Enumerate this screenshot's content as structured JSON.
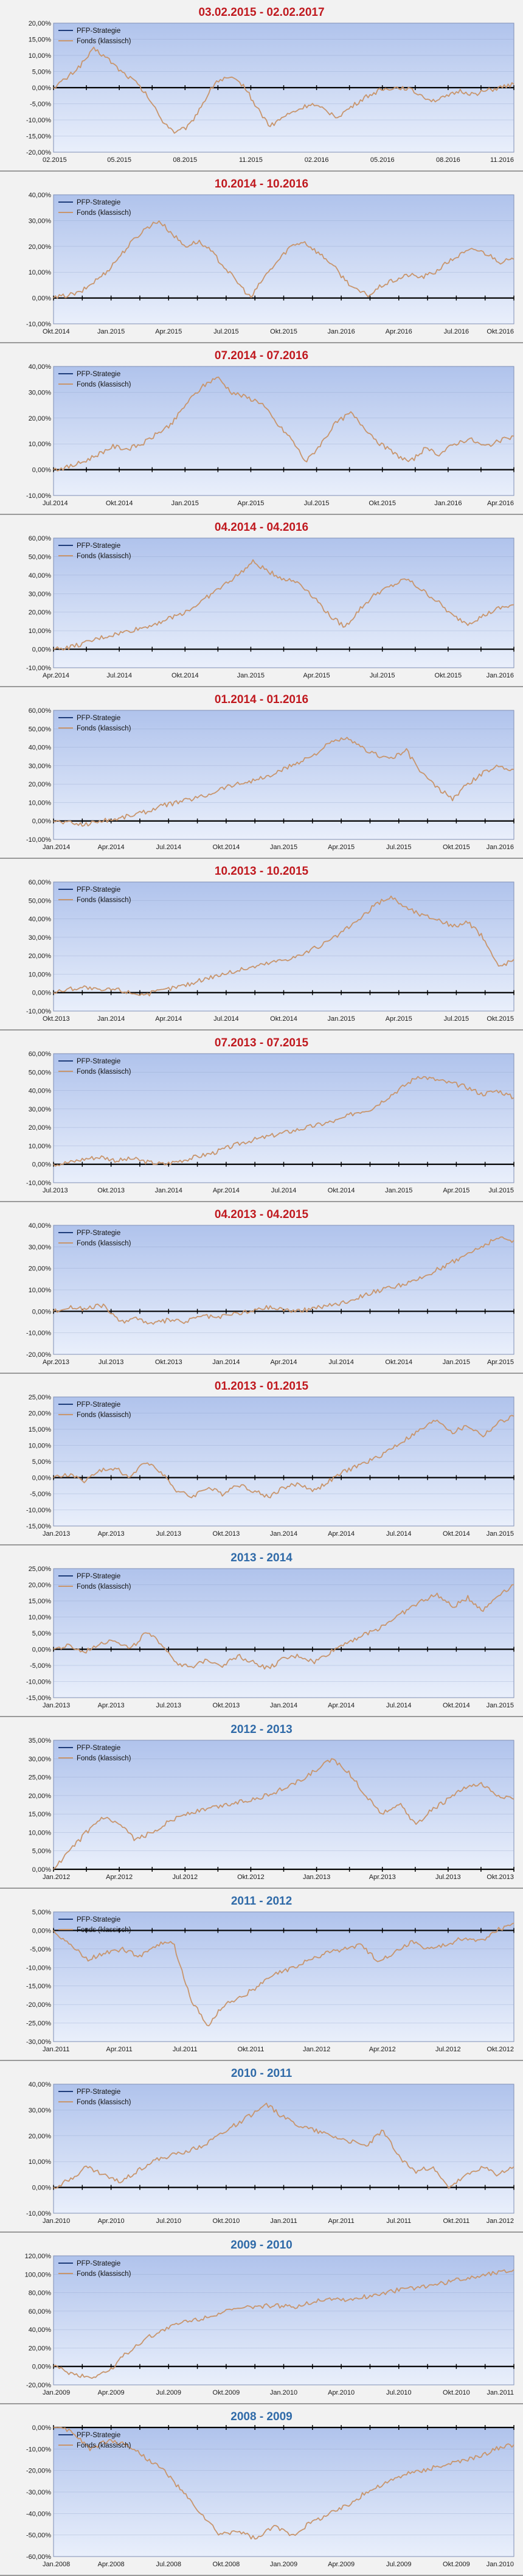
{
  "colors": {
    "panel_bg": "#f2f2f2",
    "plot_top": "#b0c3ec",
    "plot_bottom": "#e9effb",
    "title_red": "#c0191f",
    "title_blue": "#2f6aa8",
    "strategy_line": "#1f3d7a",
    "fund_line": "#c8956c",
    "zero_line": "#000000",
    "grid": "#8a9cc5"
  },
  "legend": {
    "strategy": "PFP-Strategie",
    "fund": "Fonds (klassisch)"
  },
  "chart_data": [
    {
      "type": "line",
      "title": "03.02.2015 - 02.02.2017",
      "title_color": "red",
      "yticks": [
        "20,00%",
        "15,00%",
        "10,00%",
        "5,00%",
        "0,00%",
        "-5,00%",
        "-10,00%",
        "-15,00%",
        "-20,00%"
      ],
      "ylim": [
        -20,
        20
      ],
      "xticks": [
        "02.2015",
        "05.2015",
        "08.2015",
        "11.2015",
        "02.2016",
        "05.2016",
        "08.2016",
        "11.2016"
      ],
      "series": [
        {
          "name": "PFP-Strategie",
          "values": [
            0,
            0
          ]
        },
        {
          "name": "Fonds (klassisch)",
          "values": [
            0,
            3,
            7,
            12,
            9,
            5,
            2,
            -3,
            -10,
            -14,
            -12,
            -5,
            2,
            3,
            1,
            -6,
            -12,
            -9,
            -7,
            -5,
            -7,
            -9,
            -6,
            -3,
            -1,
            0,
            0,
            -2,
            -4,
            -3,
            -1,
            -2,
            -1,
            0,
            1
          ]
        }
      ]
    },
    {
      "type": "line",
      "title": "10.2014 - 10.2016",
      "title_color": "red",
      "yticks": [
        "40,00%",
        "30,00%",
        "20,00%",
        "10,00%",
        "0,00%",
        "-10,00%"
      ],
      "ylim": [
        -10,
        40
      ],
      "xticks": [
        "Okt.2014",
        "Jan.2015",
        "Apr.2015",
        "Jul.2015",
        "Okt.2015",
        "Jan.2016",
        "Apr.2016",
        "Jul.2016",
        "Okt.2016"
      ],
      "series": [
        {
          "name": "PFP-Strategie",
          "values": [
            0,
            0
          ]
        },
        {
          "name": "Fonds (klassisch)",
          "values": [
            0,
            1,
            2,
            6,
            10,
            16,
            22,
            27,
            30,
            25,
            20,
            22,
            18,
            12,
            6,
            0,
            8,
            14,
            20,
            22,
            18,
            14,
            8,
            3,
            1,
            5,
            7,
            9,
            8,
            10,
            14,
            17,
            19,
            17,
            14,
            15
          ]
        }
      ]
    },
    {
      "type": "line",
      "title": "07.2014 - 07.2016",
      "title_color": "red",
      "yticks": [
        "40,00%",
        "30,00%",
        "20,00%",
        "10,00%",
        "0,00%",
        "-10,00%"
      ],
      "ylim": [
        -10,
        40
      ],
      "xticks": [
        "Jul.2014",
        "Okt.2014",
        "Jan.2015",
        "Apr.2015",
        "Jul.2015",
        "Okt.2015",
        "Jan.2016",
        "Apr.2016"
      ],
      "series": [
        {
          "name": "PFP-Strategie",
          "values": [
            0,
            0
          ]
        },
        {
          "name": "Fonds (klassisch)",
          "values": [
            0,
            1,
            3,
            6,
            9,
            8,
            10,
            14,
            18,
            26,
            32,
            36,
            30,
            28,
            26,
            18,
            12,
            3,
            10,
            18,
            22,
            16,
            10,
            6,
            3,
            8,
            6,
            10,
            12,
            9,
            11,
            13
          ]
        }
      ]
    },
    {
      "type": "line",
      "title": "04.2014 - 04.2016",
      "title_color": "red",
      "yticks": [
        "60,00%",
        "50,00%",
        "40,00%",
        "30,00%",
        "20,00%",
        "10,00%",
        "0,00%",
        "-10,00%"
      ],
      "ylim": [
        -10,
        60
      ],
      "xticks": [
        "Apr.2014",
        "Jul.2014",
        "Okt.2014",
        "Jan.2015",
        "Apr.2015",
        "Jul.2015",
        "Okt.2015",
        "Jan.2016"
      ],
      "series": [
        {
          "name": "PFP-Strategie",
          "values": [
            0,
            0
          ]
        },
        {
          "name": "Fonds (klassisch)",
          "values": [
            0,
            1,
            3,
            6,
            8,
            10,
            12,
            15,
            18,
            22,
            28,
            34,
            40,
            47,
            42,
            38,
            36,
            28,
            18,
            12,
            22,
            30,
            34,
            38,
            32,
            26,
            18,
            14,
            18,
            22,
            24
          ]
        }
      ]
    },
    {
      "type": "line",
      "title": "01.2014 - 01.2016",
      "title_color": "red",
      "yticks": [
        "60,00%",
        "50,00%",
        "40,00%",
        "30,00%",
        "20,00%",
        "10,00%",
        "0,00%",
        "-10,00%"
      ],
      "ylim": [
        -10,
        60
      ],
      "xticks": [
        "Jan.2014",
        "Apr.2014",
        "Jul.2014",
        "Okt.2014",
        "Jan.2015",
        "Apr.2015",
        "Jul.2015",
        "Okt.2015",
        "Jan.2016"
      ],
      "series": [
        {
          "name": "PFP-Strategie",
          "values": [
            0,
            0
          ]
        },
        {
          "name": "Fonds (klassisch)",
          "values": [
            0,
            -1,
            -2,
            0,
            1,
            3,
            5,
            8,
            10,
            12,
            14,
            18,
            20,
            22,
            24,
            28,
            32,
            36,
            42,
            45,
            40,
            36,
            34,
            38,
            26,
            18,
            12,
            20,
            26,
            30,
            28
          ]
        }
      ]
    },
    {
      "type": "line",
      "title": "10.2013 - 10.2015",
      "title_color": "red",
      "yticks": [
        "60,00%",
        "50,00%",
        "40,00%",
        "30,00%",
        "20,00%",
        "10,00%",
        "0,00%",
        "-10,00%"
      ],
      "ylim": [
        -10,
        60
      ],
      "xticks": [
        "Okt.2013",
        "Jan.2014",
        "Apr.2014",
        "Jul.2014",
        "Okt.2014",
        "Jan.2015",
        "Apr.2015",
        "Jul.2015",
        "Okt.2015"
      ],
      "series": [
        {
          "name": "PFP-Strategie",
          "values": [
            0,
            0
          ]
        },
        {
          "name": "Fonds (klassisch)",
          "values": [
            0,
            2,
            3,
            1,
            2,
            0,
            -1,
            1,
            3,
            5,
            8,
            10,
            12,
            14,
            16,
            18,
            20,
            24,
            28,
            34,
            40,
            48,
            52,
            46,
            42,
            40,
            36,
            38,
            30,
            14,
            18
          ]
        }
      ]
    },
    {
      "type": "line",
      "title": "07.2013 - 07.2015",
      "title_color": "red",
      "yticks": [
        "60,00%",
        "50,00%",
        "40,00%",
        "30,00%",
        "20,00%",
        "10,00%",
        "0,00%",
        "-10,00%"
      ],
      "ylim": [
        -10,
        60
      ],
      "xticks": [
        "Jul.2013",
        "Okt.2013",
        "Jan.2014",
        "Apr.2014",
        "Jul.2014",
        "Okt.2014",
        "Jan.2015",
        "Apr.2015",
        "Jul.2015"
      ],
      "series": [
        {
          "name": "PFP-Strategie",
          "values": [
            0,
            0
          ]
        },
        {
          "name": "Fonds (klassisch)",
          "values": [
            0,
            1,
            3,
            4,
            2,
            3,
            1,
            0,
            2,
            4,
            6,
            9,
            12,
            14,
            16,
            18,
            20,
            22,
            24,
            28,
            30,
            36,
            42,
            48,
            46,
            44,
            42,
            38,
            40,
            36
          ]
        }
      ]
    },
    {
      "type": "line",
      "title": "04.2013 - 04.2015",
      "title_color": "red",
      "yticks": [
        "40,00%",
        "30,00%",
        "20,00%",
        "10,00%",
        "0,00%",
        "-10,00%",
        "-20,00%"
      ],
      "ylim": [
        -20,
        40
      ],
      "xticks": [
        "Apr.2013",
        "Jul.2013",
        "Okt.2013",
        "Jan.2014",
        "Apr.2014",
        "Jul.2014",
        "Okt.2014",
        "Jan.2015",
        "Apr.2015"
      ],
      "series": [
        {
          "name": "PFP-Strategie",
          "values": [
            0,
            0
          ]
        },
        {
          "name": "Fonds (klassisch)",
          "values": [
            0,
            2,
            1,
            3,
            -5,
            -3,
            -6,
            -4,
            -5,
            -2,
            -3,
            -1,
            0,
            2,
            1,
            0,
            2,
            3,
            5,
            8,
            10,
            12,
            14,
            18,
            22,
            26,
            30,
            34,
            33
          ]
        }
      ]
    },
    {
      "type": "line",
      "title": "01.2013 - 01.2015",
      "title_color": "red",
      "yticks": [
        "25,00%",
        "20,00%",
        "15,00%",
        "10,00%",
        "5,00%",
        "0,00%",
        "-5,00%",
        "-10,00%",
        "-15,00%"
      ],
      "ylim": [
        -15,
        25
      ],
      "xticks": [
        "Jan.2013",
        "Apr.2013",
        "Jul.2013",
        "Okt.2013",
        "Jan.2014",
        "Apr.2014",
        "Jul.2014",
        "Okt.2014",
        "Jan.2015"
      ],
      "series": [
        {
          "name": "PFP-Strategie",
          "values": [
            0,
            0
          ]
        },
        {
          "name": "Fonds (klassisch)",
          "values": [
            0,
            1,
            -1,
            2,
            3,
            0,
            5,
            2,
            -4,
            -6,
            -3,
            -5,
            -2,
            -4,
            -6,
            -3,
            -2,
            -4,
            -1,
            2,
            4,
            6,
            9,
            12,
            15,
            18,
            14,
            16,
            13,
            17,
            19
          ]
        }
      ]
    },
    {
      "type": "line",
      "title": "2013 - 2014",
      "title_color": "blue",
      "yticks": [
        "25,00%",
        "20,00%",
        "15,00%",
        "10,00%",
        "5,00%",
        "0,00%",
        "-5,00%",
        "-10,00%",
        "-15,00%"
      ],
      "ylim": [
        -15,
        25
      ],
      "xticks": [
        "Jan.2013",
        "Apr.2013",
        "Jul.2013",
        "Okt.2013",
        "Jan.2014",
        "Apr.2014",
        "Jul.2014",
        "Okt.2014",
        "Jan.2015"
      ],
      "series": [
        {
          "name": "PFP-Strategie",
          "values": [
            0,
            0
          ]
        },
        {
          "name": "Fonds (klassisch)",
          "values": [
            0,
            1,
            -1,
            2,
            3,
            0,
            5,
            2,
            -4,
            -6,
            -3,
            -5,
            -2,
            -4,
            -6,
            -3,
            -2,
            -4,
            -1,
            2,
            4,
            6,
            9,
            12,
            15,
            17,
            13,
            16,
            12,
            17,
            20
          ]
        }
      ]
    },
    {
      "type": "line",
      "title": "2012 - 2013",
      "title_color": "blue",
      "yticks": [
        "35,00%",
        "30,00%",
        "25,00%",
        "20,00%",
        "15,00%",
        "10,00%",
        "5,00%",
        "0,00%"
      ],
      "ylim": [
        0,
        35
      ],
      "xticks": [
        "Jan.2012",
        "Apr.2012",
        "Jul.2012",
        "Okt.2012",
        "Jan.2013",
        "Apr.2013",
        "Jul.2013",
        "Okt.2013"
      ],
      "series": [
        {
          "name": "PFP-Strategie",
          "values": [
            0,
            0
          ]
        },
        {
          "name": "Fonds (klassisch)",
          "values": [
            0,
            5,
            10,
            14,
            12,
            8,
            10,
            13,
            15,
            16,
            17,
            18,
            19,
            20,
            22,
            24,
            27,
            30,
            26,
            20,
            15,
            18,
            12,
            16,
            19,
            22,
            23,
            20,
            19
          ]
        }
      ]
    },
    {
      "type": "line",
      "title": "2011 - 2012",
      "title_color": "blue",
      "yticks": [
        "5,00%",
        "0,00%",
        "-5,00%",
        "-10,00%",
        "-15,00%",
        "-20,00%",
        "-25,00%",
        "-30,00%"
      ],
      "ylim": [
        -30,
        5
      ],
      "xticks": [
        "Jan.2011",
        "Apr.2011",
        "Jul.2011",
        "Okt.2011",
        "Jan.2012",
        "Apr.2012",
        "Jul.2012",
        "Okt.2012"
      ],
      "series": [
        {
          "name": "PFP-Strategie",
          "values": [
            0,
            0
          ]
        },
        {
          "name": "Fonds (klassisch)",
          "values": [
            0,
            -4,
            -8,
            -6,
            -5,
            -7,
            -4,
            -3,
            -18,
            -26,
            -20,
            -18,
            -15,
            -12,
            -10,
            -8,
            -6,
            -5,
            -4,
            -8,
            -6,
            -3,
            -5,
            -4,
            -2,
            -3,
            0,
            2
          ]
        }
      ]
    },
    {
      "type": "line",
      "title": "2010 - 2011",
      "title_color": "blue",
      "yticks": [
        "40,00%",
        "30,00%",
        "20,00%",
        "10,00%",
        "0,00%",
        "-10,00%"
      ],
      "ylim": [
        -10,
        40
      ],
      "xticks": [
        "Jan.2010",
        "Apr.2010",
        "Jul.2010",
        "Okt.2010",
        "Jan.2011",
        "Apr.2011",
        "Jul.2011",
        "Okt.2011",
        "Jan.2012"
      ],
      "series": [
        {
          "name": "PFP-Strategie",
          "values": [
            0,
            0
          ]
        },
        {
          "name": "Fonds (klassisch)",
          "values": [
            0,
            3,
            8,
            5,
            2,
            6,
            10,
            12,
            14,
            16,
            20,
            24,
            28,
            32,
            27,
            24,
            22,
            20,
            18,
            16,
            22,
            12,
            6,
            8,
            0,
            4,
            8,
            5,
            8
          ]
        }
      ]
    },
    {
      "type": "line",
      "title": "2009 - 2010",
      "title_color": "blue",
      "yticks": [
        "120,00%",
        "100,00%",
        "80,00%",
        "60,00%",
        "40,00%",
        "20,00%",
        "0,00%",
        "-20,00%"
      ],
      "ylim": [
        -20,
        120
      ],
      "xticks": [
        "Jan.2009",
        "Apr.2009",
        "Jul.2009",
        "Okt.2009",
        "Jan.2010",
        "Apr.2010",
        "Jul.2010",
        "Okt.2010",
        "Jan.2011"
      ],
      "series": [
        {
          "name": "PFP-Strategie",
          "values": [
            0,
            0
          ]
        },
        {
          "name": "Fonds (klassisch)",
          "values": [
            0,
            -8,
            -12,
            -5,
            15,
            30,
            40,
            48,
            52,
            58,
            62,
            65,
            66,
            64,
            70,
            74,
            72,
            76,
            80,
            84,
            86,
            90,
            94,
            98,
            102,
            105
          ]
        }
      ]
    },
    {
      "type": "line",
      "title": "2008 - 2009",
      "title_color": "blue",
      "yticks": [
        "0,00%",
        "-10,00%",
        "-20,00%",
        "-30,00%",
        "-40,00%",
        "-50,00%",
        "-60,00%"
      ],
      "ylim": [
        -60,
        0
      ],
      "xticks": [
        "Jan.2008",
        "Apr.2008",
        "Jul.2008",
        "Okt.2008",
        "Jan.2009",
        "Apr.2009",
        "Jul.2009",
        "Okt.2009",
        "Jan.2010"
      ],
      "series": [
        {
          "name": "PFP-Strategie",
          "values": [
            0,
            0
          ]
        },
        {
          "name": "Fonds (klassisch)",
          "values": [
            0,
            -2,
            -10,
            -6,
            -8,
            -14,
            -20,
            -30,
            -40,
            -50,
            -48,
            -52,
            -46,
            -50,
            -44,
            -40,
            -36,
            -30,
            -26,
            -22,
            -20,
            -18,
            -16,
            -14,
            -10,
            -8
          ]
        }
      ]
    }
  ]
}
